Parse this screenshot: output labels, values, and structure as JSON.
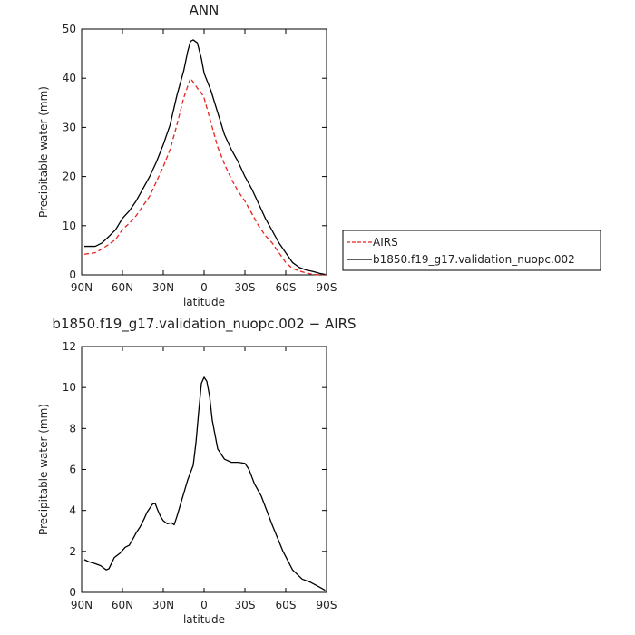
{
  "chart_data": [
    {
      "type": "line",
      "title": "ANN",
      "xlabel": "latitude",
      "ylabel": "Precipitable water (mm)",
      "xlim": [
        90,
        -90
      ],
      "ylim": [
        0,
        50
      ],
      "xticks": [
        90,
        60,
        30,
        0,
        -30,
        -60,
        -90
      ],
      "xtick_labels": [
        "90N",
        "60N",
        "30N",
        "0",
        "30S",
        "60S",
        "90S"
      ],
      "yticks": [
        0,
        10,
        20,
        30,
        40,
        50
      ],
      "ytick_labels": [
        "0",
        "10",
        "20",
        "30",
        "40",
        "50"
      ],
      "legend_position": "right",
      "series": [
        {
          "name": "AIRS",
          "color": "#e8231e",
          "dash": "dashed",
          "x": [
            88,
            80,
            75,
            70,
            65,
            60,
            55,
            50,
            45,
            40,
            35,
            30,
            25,
            20,
            15,
            10,
            5,
            2,
            0,
            -3,
            -7,
            -10,
            -15,
            -20,
            -25,
            -30,
            -35,
            -40,
            -45,
            -50,
            -55,
            -60,
            -65,
            -70,
            -75,
            -80,
            -85,
            -89
          ],
          "y": [
            4.2,
            4.5,
            5.3,
            6.2,
            7.2,
            9.2,
            10.5,
            12.0,
            14.0,
            16.0,
            19.0,
            22.0,
            25.5,
            30.5,
            36.0,
            40.0,
            38.0,
            37.0,
            36.0,
            33.0,
            29.0,
            26.0,
            22.5,
            19.5,
            17.0,
            15.0,
            12.5,
            10.0,
            8.0,
            6.5,
            4.5,
            2.5,
            1.3,
            0.8,
            0.4,
            0.1,
            0.0,
            0.0
          ]
        },
        {
          "name": "b1850.f19_g17.validation_nuopc.002",
          "color": "#000000",
          "dash": "solid",
          "x": [
            88,
            80,
            75,
            70,
            65,
            60,
            55,
            50,
            45,
            40,
            35,
            30,
            25,
            20,
            15,
            12,
            10,
            8,
            5,
            2,
            0,
            -5,
            -10,
            -15,
            -20,
            -25,
            -30,
            -35,
            -40,
            -45,
            -50,
            -55,
            -60,
            -65,
            -70,
            -75,
            -80,
            -85,
            -89
          ],
          "y": [
            5.8,
            5.8,
            6.5,
            7.8,
            9.2,
            11.5,
            13.0,
            15.0,
            17.5,
            20.0,
            23.0,
            26.5,
            30.5,
            36.5,
            41.5,
            45.5,
            47.5,
            47.8,
            47.2,
            44.0,
            41.0,
            37.5,
            33.0,
            28.5,
            25.5,
            23.0,
            20.0,
            17.5,
            14.5,
            11.5,
            9.0,
            6.5,
            4.5,
            2.5,
            1.5,
            1.0,
            0.7,
            0.3,
            0.1
          ]
        }
      ]
    },
    {
      "type": "line",
      "title": "b1850.f19_g17.validation_nuopc.002 − AIRS",
      "xlabel": "latitude",
      "ylabel": "Precipitable water (mm)",
      "xlim": [
        90,
        -90
      ],
      "ylim": [
        0,
        12
      ],
      "xticks": [
        90,
        60,
        30,
        0,
        -30,
        -60,
        -90
      ],
      "xtick_labels": [
        "90N",
        "60N",
        "30N",
        "0",
        "30S",
        "60S",
        "90S"
      ],
      "yticks": [
        0,
        2,
        4,
        6,
        8,
        10,
        12
      ],
      "ytick_labels": [
        "0",
        "2",
        "4",
        "6",
        "8",
        "10",
        "12"
      ],
      "series": [
        {
          "color": "#000000",
          "dash": "solid",
          "x": [
            88,
            85,
            80,
            76,
            72,
            70,
            66,
            62,
            58,
            55,
            52,
            50,
            47,
            44,
            42,
            38,
            36,
            34,
            32,
            30,
            27,
            24,
            22,
            20,
            16,
            12,
            8,
            6,
            4,
            2,
            0,
            -2,
            -4,
            -6,
            -10,
            -15,
            -20,
            -25,
            -30,
            -33,
            -37,
            -42,
            -50,
            -58,
            -65,
            -72,
            -78,
            -85,
            -89
          ],
          "y": [
            1.6,
            1.5,
            1.4,
            1.3,
            1.1,
            1.15,
            1.7,
            1.9,
            2.2,
            2.3,
            2.65,
            2.9,
            3.2,
            3.6,
            3.9,
            4.3,
            4.35,
            4.0,
            3.7,
            3.5,
            3.35,
            3.4,
            3.3,
            3.7,
            4.6,
            5.5,
            6.2,
            7.3,
            8.8,
            10.2,
            10.5,
            10.3,
            9.6,
            8.4,
            7.0,
            6.5,
            6.35,
            6.35,
            6.3,
            6.0,
            5.3,
            4.7,
            3.3,
            2.0,
            1.1,
            0.65,
            0.5,
            0.25,
            0.1
          ]
        }
      ]
    }
  ]
}
